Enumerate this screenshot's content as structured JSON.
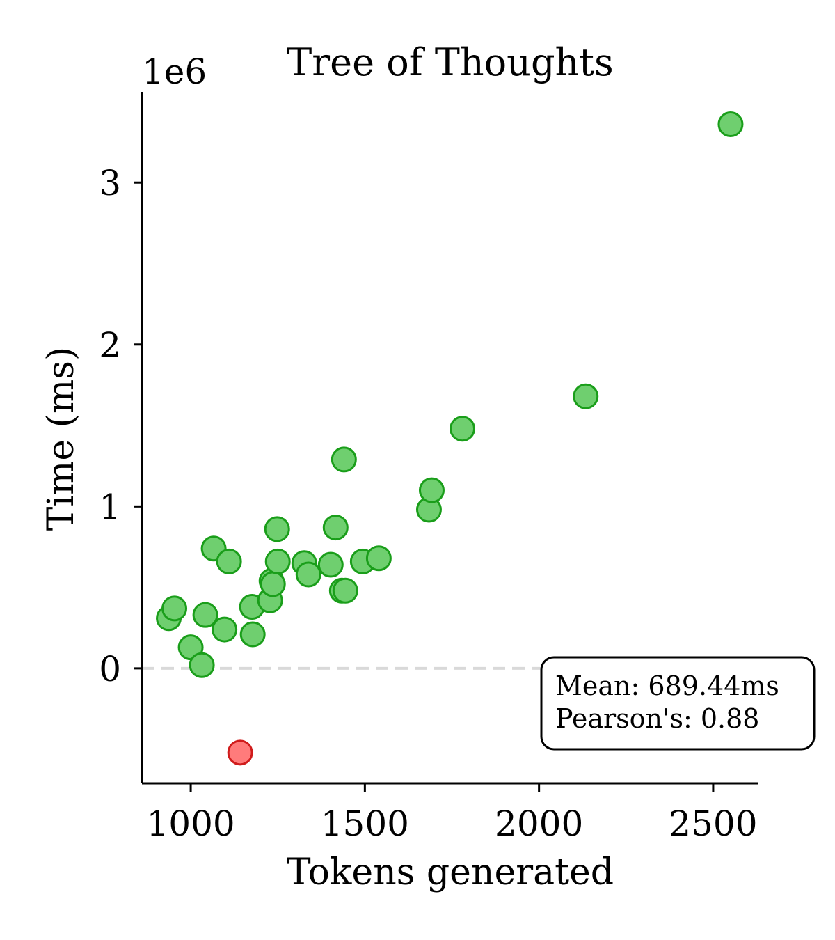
{
  "chart_data": {
    "type": "scatter",
    "title": "Tree of Thoughts",
    "xlabel": "Tokens generated",
    "ylabel": "Time (ms)",
    "y_offset_label": "1e6",
    "xlim": [
      860,
      2630
    ],
    "ylim": [
      -0.71,
      3.56
    ],
    "x_ticks": [
      1000,
      1500,
      2000,
      2500
    ],
    "y_ticks": [
      0,
      1,
      2,
      3
    ],
    "grid": false,
    "zero_line": {
      "y": 0,
      "style": "dashed",
      "color": "#d9d9d9"
    },
    "colors": {
      "positive_fill": "#6fcf6f",
      "positive_edge": "#1a9e1a",
      "negative_fill": "#ff7b7b",
      "negative_edge": "#d01c1c"
    },
    "points": [
      {
        "x": 937,
        "y": 0.31
      },
      {
        "x": 953,
        "y": 0.37
      },
      {
        "x": 1000,
        "y": 0.13
      },
      {
        "x": 1032,
        "y": 0.02
      },
      {
        "x": 1042,
        "y": 0.33
      },
      {
        "x": 1066,
        "y": 0.74
      },
      {
        "x": 1097,
        "y": 0.24
      },
      {
        "x": 1110,
        "y": 0.66
      },
      {
        "x": 1142,
        "y": -0.52
      },
      {
        "x": 1176,
        "y": 0.38
      },
      {
        "x": 1178,
        "y": 0.21
      },
      {
        "x": 1228,
        "y": 0.42
      },
      {
        "x": 1232,
        "y": 0.54
      },
      {
        "x": 1236,
        "y": 0.52
      },
      {
        "x": 1248,
        "y": 0.86
      },
      {
        "x": 1250,
        "y": 0.66
      },
      {
        "x": 1326,
        "y": 0.65
      },
      {
        "x": 1338,
        "y": 0.58
      },
      {
        "x": 1402,
        "y": 0.64
      },
      {
        "x": 1416,
        "y": 0.87
      },
      {
        "x": 1434,
        "y": 0.48
      },
      {
        "x": 1440,
        "y": 1.29
      },
      {
        "x": 1444,
        "y": 0.48
      },
      {
        "x": 1494,
        "y": 0.66
      },
      {
        "x": 1540,
        "y": 0.68
      },
      {
        "x": 1684,
        "y": 0.98
      },
      {
        "x": 1692,
        "y": 1.1
      },
      {
        "x": 1780,
        "y": 1.48
      },
      {
        "x": 2134,
        "y": 1.68
      },
      {
        "x": 2550,
        "y": 3.36
      }
    ],
    "annotation": {
      "mean_text": "Mean: 689.44ms",
      "pearson_text": "Pearson's: 0.88"
    }
  }
}
